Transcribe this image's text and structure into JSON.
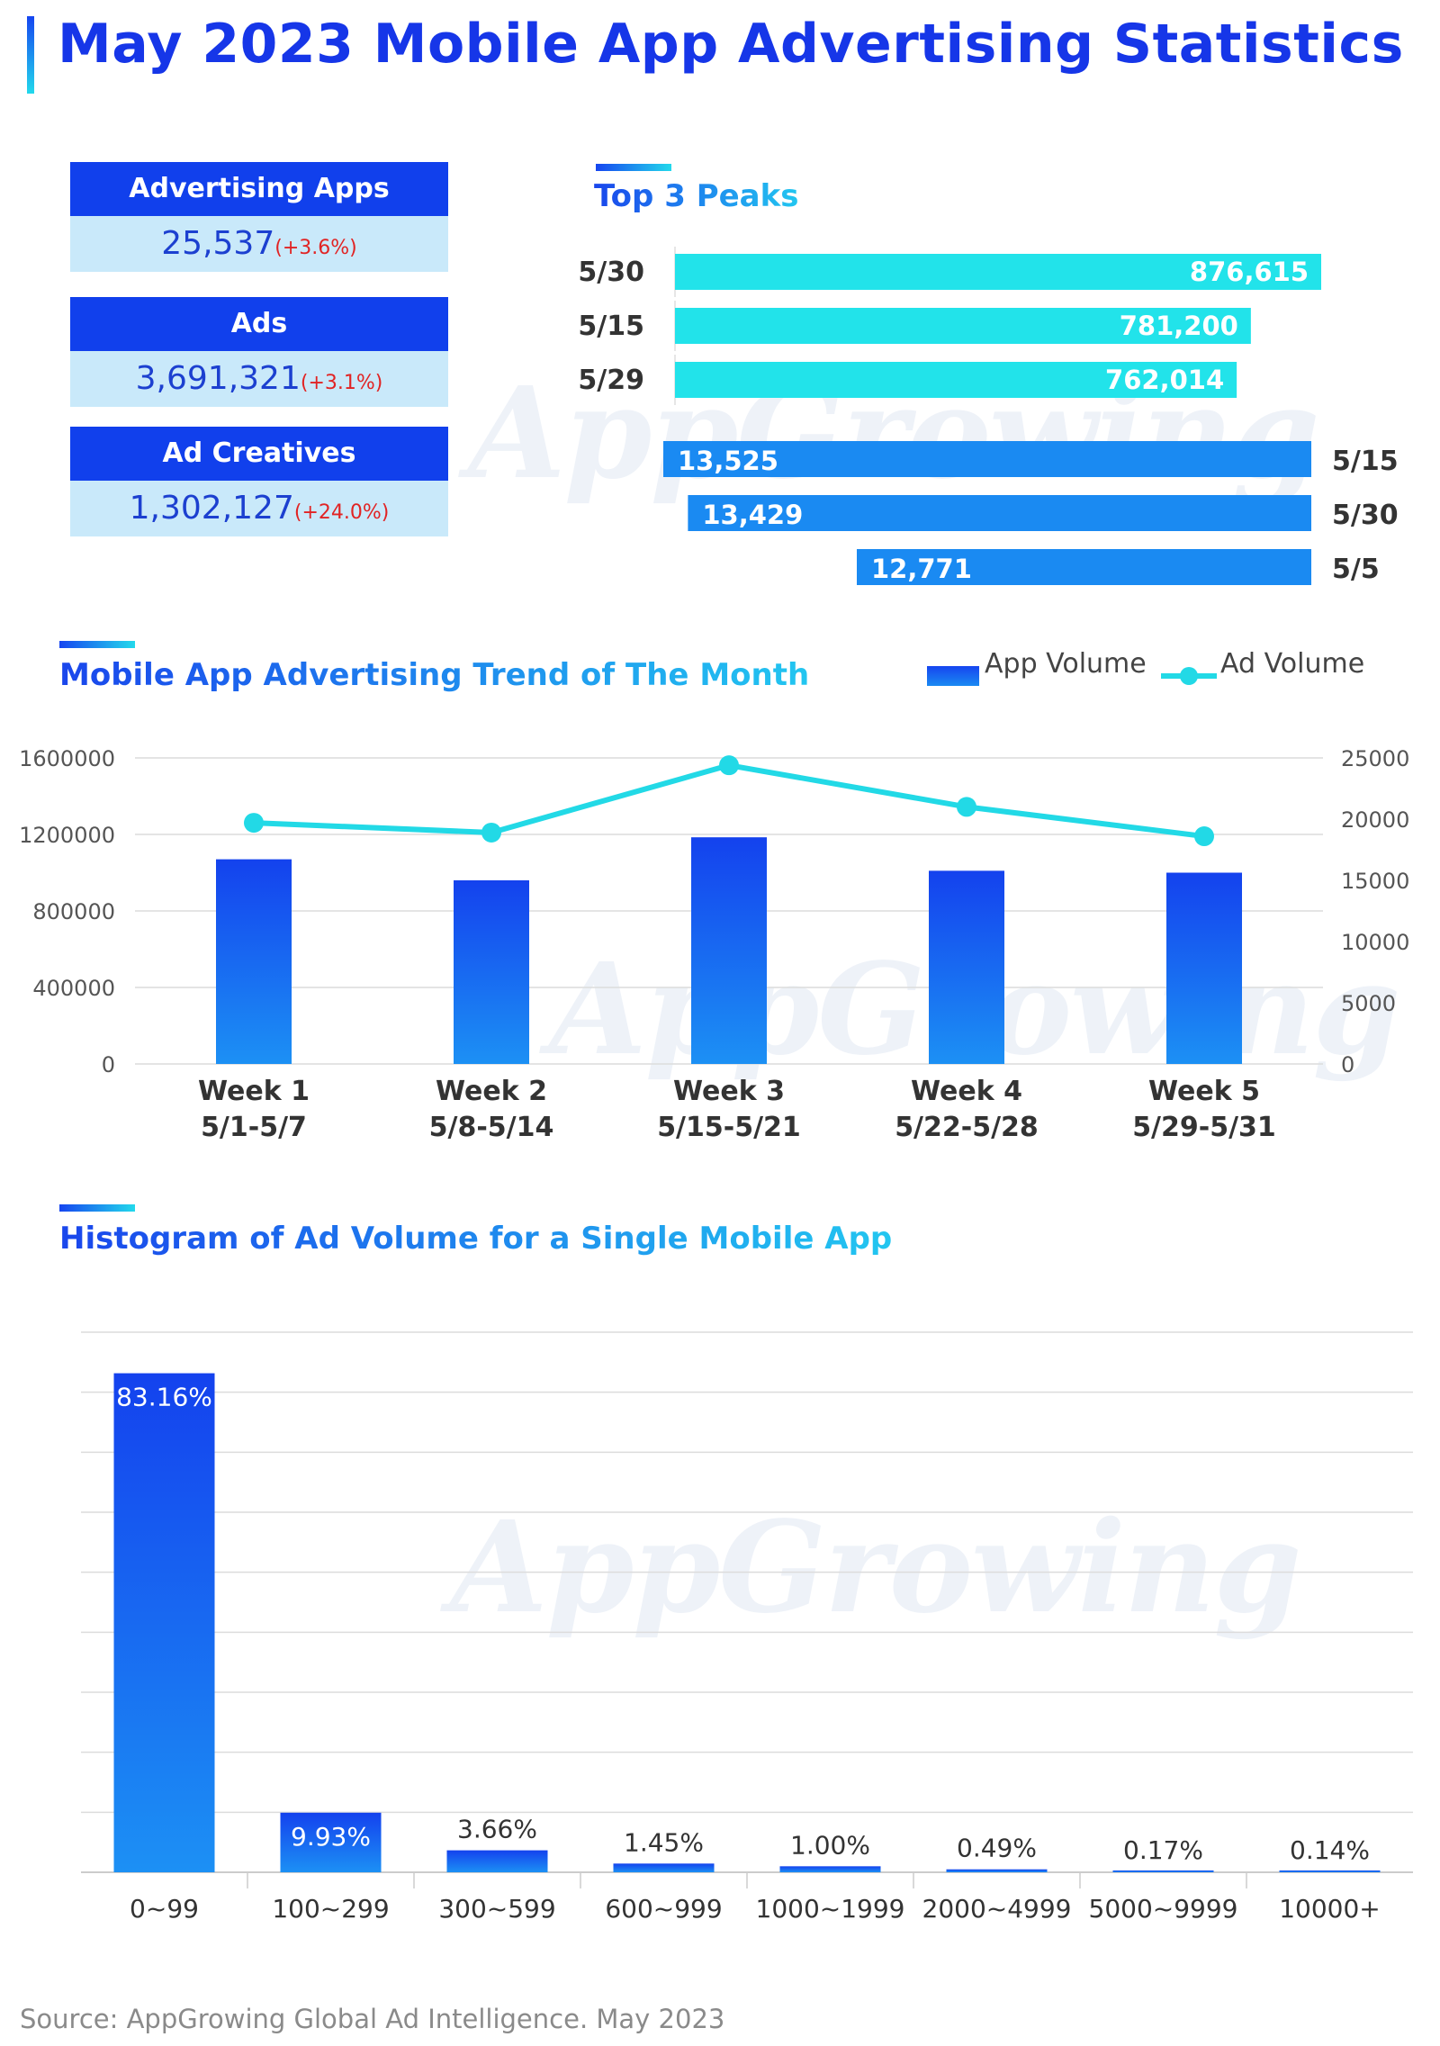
{
  "title": "May 2023 Mobile App Advertising Statistics",
  "watermark": "AppGrowing",
  "stats": [
    {
      "label": "Advertising Apps",
      "value": "25,537",
      "change": "(+3.6%)"
    },
    {
      "label": "Ads",
      "value": "3,691,321",
      "change": "(+3.1%)"
    },
    {
      "label": "Ad Creatives",
      "value": "1,302,127",
      "change": "(+24.0%)"
    }
  ],
  "peaks": {
    "title": "Top 3 Peaks",
    "ad_peaks": [
      {
        "date": "5/30",
        "value": 876615,
        "label": "876,615"
      },
      {
        "date": "5/15",
        "value": 781200,
        "label": "781,200"
      },
      {
        "date": "5/29",
        "value": 762014,
        "label": "762,014"
      }
    ],
    "app_peaks": [
      {
        "date": "5/15",
        "value": 13525,
        "label": "13,525"
      },
      {
        "date": "5/30",
        "value": 13429,
        "label": "13,429"
      },
      {
        "date": "5/5",
        "value": 12771,
        "label": "12,771"
      }
    ],
    "colors": {
      "ad": "#22e3ea",
      "app": "#1a8af2"
    }
  },
  "trend": {
    "title": "Mobile App Advertising Trend of The Month",
    "legend": {
      "bars": "App Volume",
      "line": "Ad Volume"
    }
  },
  "histogram": {
    "title": "Histogram of Ad Volume for a Single Mobile App"
  },
  "chart_data": [
    {
      "type": "bar",
      "title": "Top 3 Peaks",
      "series": [
        {
          "values": [
            876615,
            781200,
            762014
          ],
          "categories": [
            "5/30",
            "5/15",
            "5/29"
          ]
        },
        {
          "values": [
            13525,
            13429,
            12771
          ],
          "categories": [
            "5/15",
            "5/30",
            "5/5"
          ]
        }
      ]
    },
    {
      "type": "bar",
      "title": "Mobile App Advertising Trend of The Month",
      "categories": [
        "Week 1\n5/1-5/7",
        "Week 2\n5/8-5/14",
        "Week 3\n5/15-5/21",
        "Week 4\n5/22-5/28",
        "Week 5\n5/29-5/31"
      ],
      "series": [
        {
          "name": "App Volume",
          "type": "bar",
          "axis": "left",
          "values": [
            1070000,
            960000,
            1185000,
            1010000,
            1000000
          ]
        },
        {
          "name": "Ad Volume",
          "type": "line",
          "axis": "right",
          "values": [
            19700,
            18900,
            24400,
            21000,
            18600
          ]
        }
      ],
      "ylim": [
        0,
        1600000
      ],
      "y_ticks": [
        "0",
        "400000",
        "800000",
        "1200000",
        "1600000"
      ],
      "y2lim": [
        0,
        25000
      ],
      "y2_ticks": [
        "0",
        "5000",
        "10000",
        "15000",
        "20000",
        "25000"
      ],
      "legend": "top-right",
      "grid": true
    },
    {
      "type": "bar",
      "title": "Histogram of Ad Volume for a Single Mobile App",
      "categories": [
        "0~99",
        "100~299",
        "300~599",
        "600~999",
        "1000~1999",
        "2000~4999",
        "5000~9999",
        "10000+"
      ],
      "values": [
        83.16,
        9.93,
        3.66,
        1.45,
        1.0,
        0.49,
        0.17,
        0.14
      ],
      "labels": [
        "83.16%",
        "9.93%",
        "3.66%",
        "1.45%",
        "1.00%",
        "0.49%",
        "0.17%",
        "0.14%"
      ],
      "ylim": [
        0,
        90
      ],
      "grid": true
    }
  ],
  "source": "Source: AppGrowing Global Ad Intelligence. May 2023"
}
